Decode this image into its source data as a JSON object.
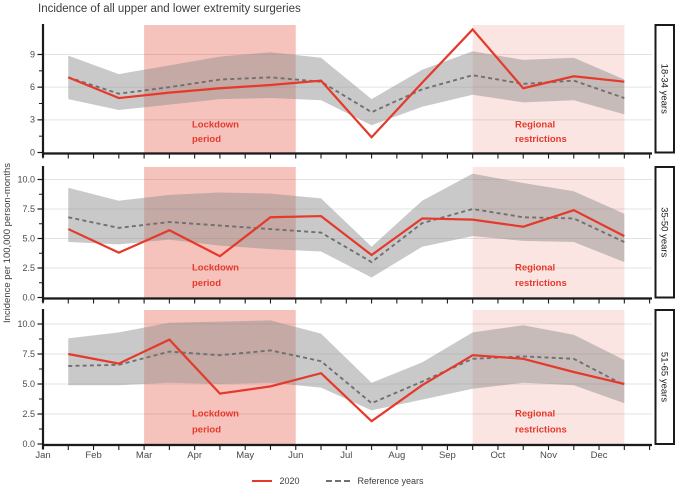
{
  "title": "Incidence of all upper and lower extremity surgeries",
  "y_axis_label": "Incidence per 100,000 person-months",
  "legend": {
    "series_2020": "2020",
    "series_ref": "Reference years"
  },
  "colors": {
    "accent_red": "#E5392B",
    "reference_gray": "#707070",
    "ribbon_gray": "#8C8C8C",
    "band_red": "#DE3720",
    "gridline": "#E3E3E3",
    "axis": "#1A1A1A",
    "tick_label": "#4A4A4A",
    "title_text": "#3D3D3D",
    "strip_text": "#1A1A1A"
  },
  "chart_data": {
    "type": "line",
    "x_tick_labels": [
      "Jan",
      "Feb",
      "Mar",
      "Apr",
      "May",
      "Jun",
      "Jul",
      "Aug",
      "Sep",
      "Oct",
      "Nov",
      "Dec"
    ],
    "legend_position": "bottom",
    "grid": "horizontal-major",
    "facets": [
      {
        "label": "18-34 years",
        "y_tick_labels": [
          "0",
          "3",
          "6",
          "9"
        ],
        "y_tick_values": [
          0,
          3,
          6,
          9
        ],
        "ylim": [
          0,
          11.7
        ],
        "series": [
          {
            "name": "2020",
            "values": [
              6.9,
              5.0,
              5.5,
              5.9,
              6.2,
              6.6,
              1.4,
              6.4,
              11.3,
              5.9,
              7.0,
              6.5
            ]
          },
          {
            "name": "Reference years",
            "values": [
              6.9,
              5.4,
              6.0,
              6.7,
              6.9,
              6.5,
              3.7,
              5.8,
              7.1,
              6.3,
              6.6,
              5.0
            ]
          }
        ],
        "ribbon_lower": [
          4.9,
          3.9,
          4.4,
          4.9,
          5.0,
          4.8,
          2.5,
          4.2,
          5.3,
          4.6,
          4.8,
          3.5
        ],
        "ribbon_upper": [
          8.9,
          7.2,
          8.0,
          8.8,
          9.2,
          8.7,
          4.9,
          7.6,
          9.3,
          8.5,
          8.7,
          6.7
        ]
      },
      {
        "label": "35-50 years",
        "y_tick_labels": [
          "0.0",
          "2.5",
          "5.0",
          "7.5",
          "10.0"
        ],
        "y_tick_values": [
          0,
          2.5,
          5,
          7.5,
          10
        ],
        "ylim": [
          0,
          11.0
        ],
        "series": [
          {
            "name": "2020",
            "values": [
              5.8,
              3.8,
              5.7,
              3.5,
              6.8,
              6.9,
              3.6,
              6.7,
              6.6,
              6.0,
              7.4,
              5.2
            ]
          },
          {
            "name": "Reference years",
            "values": [
              6.8,
              5.9,
              6.4,
              6.1,
              5.8,
              5.5,
              3.0,
              6.3,
              7.5,
              6.8,
              6.7,
              4.7
            ]
          }
        ],
        "ribbon_lower": [
          4.7,
          4.5,
          4.9,
          4.4,
          4.1,
          3.9,
          1.7,
          4.3,
          5.2,
          4.8,
          4.7,
          3.0
        ],
        "ribbon_upper": [
          9.3,
          8.2,
          8.7,
          8.9,
          8.8,
          8.4,
          4.3,
          8.2,
          10.5,
          9.7,
          9.0,
          7.1
        ]
      },
      {
        "label": "51-65 years",
        "y_tick_labels": [
          "0.0",
          "2.5",
          "5.0",
          "7.5",
          "10.0"
        ],
        "y_tick_values": [
          0,
          2.5,
          5,
          7.5,
          10
        ],
        "ylim": [
          0,
          11.2
        ],
        "series": [
          {
            "name": "2020",
            "values": [
              7.5,
              6.7,
              8.7,
              4.2,
              4.8,
              5.9,
              1.9,
              4.9,
              7.4,
              7.1,
              6.0,
              5.0
            ]
          },
          {
            "name": "Reference years",
            "values": [
              6.5,
              6.6,
              7.7,
              7.4,
              7.8,
              6.9,
              3.4,
              5.2,
              7.1,
              7.3,
              7.1,
              4.9
            ]
          }
        ],
        "ribbon_lower": [
          4.9,
          4.9,
          5.1,
          5.0,
          5.1,
          4.7,
          2.8,
          3.7,
          4.6,
          5.1,
          4.9,
          3.4
        ],
        "ribbon_upper": [
          8.8,
          9.3,
          10.1,
          10.2,
          10.3,
          9.2,
          5.1,
          6.8,
          9.3,
          9.9,
          9.1,
          7.0
        ]
      }
    ],
    "bands": [
      {
        "name": "lockdown-period",
        "label_lines": [
          "Lockdown",
          "period"
        ],
        "from_month_index": 2,
        "to_month_index": 5,
        "fill_opacity": 0.3,
        "label_x": 192
      },
      {
        "name": "regional-restrictions",
        "label_lines": [
          "Regional",
          "restrictions"
        ],
        "from_month_index": 8.5,
        "to_month_index": 11.5,
        "fill_opacity": 0.13,
        "label_x": 515
      }
    ]
  }
}
